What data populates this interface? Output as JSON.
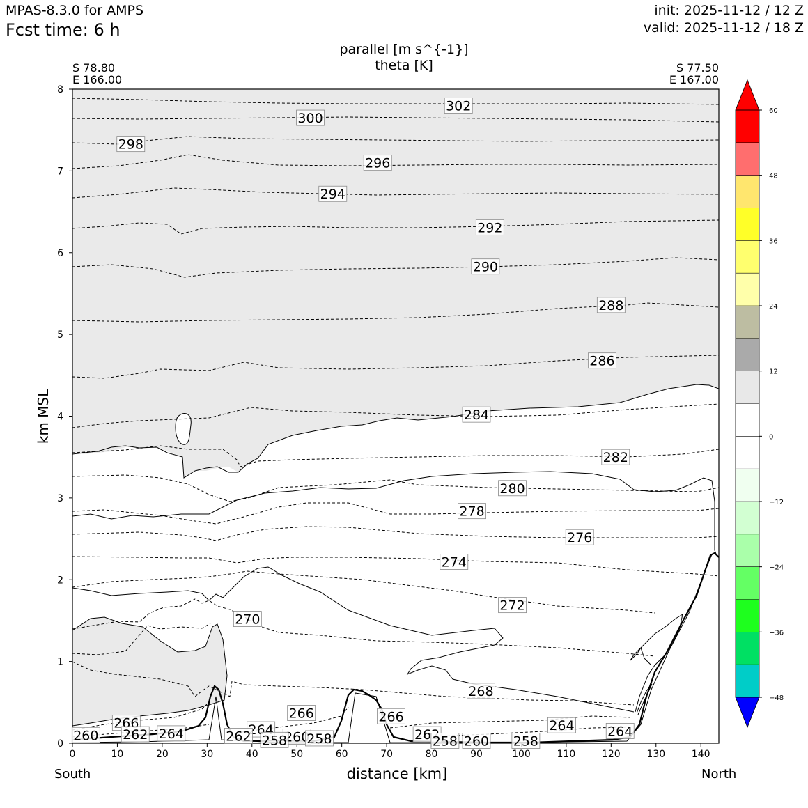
{
  "header": {
    "model": "MPAS-8.3.0 for AMPS",
    "fcst": "Fcst time:    6 h",
    "init": "init: 2025-11-12 / 12 Z",
    "valid": "valid: 2025-11-12 / 18 Z"
  },
  "section": {
    "left_lat": "S 78.80",
    "left_lon": "E 166.00",
    "right_lat": "S 77.50",
    "right_lon": "E 167.00",
    "left_dir": "South",
    "right_dir": "North"
  },
  "chart_data": {
    "type": "contour",
    "title": "parallel [m s^{-1}]",
    "subtitle": "theta [K]",
    "xlabel": "distance [km]",
    "ylabel": "km MSL",
    "xlim": [
      0,
      144
    ],
    "ylim": [
      0,
      8
    ],
    "xticks": [
      0,
      10,
      20,
      30,
      40,
      50,
      60,
      70,
      80,
      90,
      100,
      110,
      120,
      130,
      140
    ],
    "yticks": [
      0,
      1,
      2,
      3,
      4,
      5,
      6,
      7,
      8
    ],
    "colorbar": {
      "levels": [
        -54,
        -48,
        -42,
        -36,
        -30,
        -24,
        -18,
        -12,
        -6,
        0,
        6,
        12,
        18,
        24,
        30,
        36,
        42,
        48,
        54,
        60
      ],
      "tick_labels": [
        "−48",
        "−36",
        "−24",
        "−12",
        "0",
        "12",
        "24",
        "36",
        "48",
        "60"
      ],
      "tick_values": [
        -48,
        -36,
        -24,
        -12,
        0,
        12,
        24,
        36,
        48,
        60
      ],
      "colors": [
        "#0000ff",
        "#00cdc8",
        "#00e063",
        "#1eff1e",
        "#64ff64",
        "#aaffaa",
        "#d2ffd2",
        "#f0fff0",
        "#ffffff",
        "#ffffff",
        "#e8e8e8",
        "#aaaaaa",
        "#bdbda2",
        "#ffffaa",
        "#ffff6e",
        "#ffff28",
        "#ffe66e",
        "#ff6e6e",
        "#ff0000"
      ],
      "extend": "both"
    },
    "theta_labels": [
      {
        "value": "302",
        "x": 86,
        "y": 7.8
      },
      {
        "value": "300",
        "x": 53,
        "y": 7.65
      },
      {
        "value": "298",
        "x": 13,
        "y": 7.33
      },
      {
        "value": "296",
        "x": 68,
        "y": 7.1
      },
      {
        "value": "294",
        "x": 58,
        "y": 6.72
      },
      {
        "value": "292",
        "x": 93,
        "y": 6.31
      },
      {
        "value": "290",
        "x": 92,
        "y": 5.83
      },
      {
        "value": "288",
        "x": 120,
        "y": 5.36
      },
      {
        "value": "286",
        "x": 118,
        "y": 4.68
      },
      {
        "value": "284",
        "x": 90,
        "y": 4.02
      },
      {
        "value": "282",
        "x": 121,
        "y": 3.5
      },
      {
        "value": "280",
        "x": 98,
        "y": 3.12
      },
      {
        "value": "278",
        "x": 89,
        "y": 2.84
      },
      {
        "value": "276",
        "x": 113,
        "y": 2.52
      },
      {
        "value": "274",
        "x": 85,
        "y": 2.22
      },
      {
        "value": "272",
        "x": 98,
        "y": 1.69
      },
      {
        "value": "270",
        "x": 39,
        "y": 1.52
      },
      {
        "value": "268",
        "x": 91,
        "y": 0.64
      },
      {
        "value": "266",
        "x": 51,
        "y": 0.37
      },
      {
        "value": "266",
        "x": 71,
        "y": 0.33
      },
      {
        "value": "266",
        "x": 12,
        "y": 0.25
      },
      {
        "value": "264",
        "x": 22,
        "y": 0.12
      },
      {
        "value": "264",
        "x": 42,
        "y": 0.17
      },
      {
        "value": "264",
        "x": 109,
        "y": 0.22
      },
      {
        "value": "264",
        "x": 122,
        "y": 0.15
      },
      {
        "value": "262",
        "x": 14,
        "y": 0.11
      },
      {
        "value": "262",
        "x": 37,
        "y": 0.09
      },
      {
        "value": "262",
        "x": 79,
        "y": 0.11
      },
      {
        "value": "260",
        "x": 3,
        "y": 0.1
      },
      {
        "value": "260",
        "x": 50,
        "y": 0.08
      },
      {
        "value": "260",
        "x": 90,
        "y": 0.03
      },
      {
        "value": "258",
        "x": 55,
        "y": 0.06
      },
      {
        "value": "258",
        "x": 101,
        "y": 0.03
      },
      {
        "value": "258",
        "x": 45,
        "y": 0.04
      },
      {
        "value": "258",
        "x": 83,
        "y": 0.03
      }
    ]
  }
}
